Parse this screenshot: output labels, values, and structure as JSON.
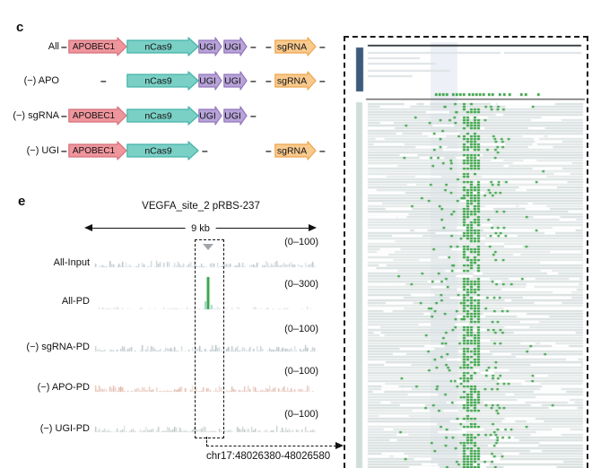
{
  "figure": {
    "panel_c_label": "c",
    "panel_e_label": "e"
  },
  "constructs": {
    "arrow_colors": {
      "apobec": {
        "fill": "#ef959c",
        "stroke": "#d4717c"
      },
      "ncas9": {
        "fill": "#7bd0c6",
        "stroke": "#45b4a9"
      },
      "ugi": {
        "fill": "#b7a3d8",
        "stroke": "#9376bd"
      },
      "sgrna": {
        "fill": "#f9ca8e",
        "stroke": "#eda54a"
      }
    },
    "rows": [
      {
        "label": "All",
        "elements": [
          {
            "t": "dash",
            "slot": "d_label"
          },
          {
            "t": "arrow",
            "slot": "apobec",
            "text": "APOBEC1",
            "color": "apobec"
          },
          {
            "t": "arrow",
            "slot": "ncas9",
            "text": "nCas9",
            "color": "ncas9"
          },
          {
            "t": "arrow",
            "slot": "ugi1",
            "text": "UGI",
            "color": "ugi"
          },
          {
            "t": "arrow",
            "slot": "ugi2",
            "text": "UGI",
            "color": "ugi"
          },
          {
            "t": "dash",
            "slot": "d_after_ugi"
          },
          {
            "t": "dash",
            "slot": "d_pre_sg"
          },
          {
            "t": "arrow",
            "slot": "sgrna",
            "text": "sgRNA",
            "color": "sgrna"
          },
          {
            "t": "dash",
            "slot": "d_end"
          }
        ]
      },
      {
        "label": "(−) APO",
        "elements": [
          {
            "t": "dash",
            "slot": "d_pre_ncas9"
          },
          {
            "t": "arrow",
            "slot": "ncas9",
            "text": "nCas9",
            "color": "ncas9"
          },
          {
            "t": "arrow",
            "slot": "ugi1",
            "text": "UGI",
            "color": "ugi"
          },
          {
            "t": "arrow",
            "slot": "ugi2",
            "text": "UGI",
            "color": "ugi"
          },
          {
            "t": "dash",
            "slot": "d_after_ugi"
          },
          {
            "t": "dash",
            "slot": "d_pre_sg"
          },
          {
            "t": "arrow",
            "slot": "sgrna",
            "text": "sgRNA",
            "color": "sgrna"
          },
          {
            "t": "dash",
            "slot": "d_end"
          }
        ]
      },
      {
        "label": "(−) sgRNA",
        "elements": [
          {
            "t": "dash",
            "slot": "d_label"
          },
          {
            "t": "arrow",
            "slot": "apobec",
            "text": "APOBEC1",
            "color": "apobec"
          },
          {
            "t": "arrow",
            "slot": "ncas9",
            "text": "nCas9",
            "color": "ncas9"
          },
          {
            "t": "arrow",
            "slot": "ugi1",
            "text": "UGI",
            "color": "ugi"
          },
          {
            "t": "arrow",
            "slot": "ugi2",
            "text": "UGI",
            "color": "ugi"
          },
          {
            "t": "dash",
            "slot": "d_after_ugi"
          }
        ]
      },
      {
        "label": "(−) UGI",
        "elements": [
          {
            "t": "dash",
            "slot": "d_label"
          },
          {
            "t": "arrow",
            "slot": "apobec",
            "text": "APOBEC1",
            "color": "apobec"
          },
          {
            "t": "arrow",
            "slot": "ncas9",
            "text": "nCas9",
            "color": "ncas9"
          },
          {
            "t": "dash",
            "slot": "d_after_ncas9"
          },
          {
            "t": "dash",
            "slot": "d_pre_sg"
          },
          {
            "t": "arrow",
            "slot": "sgrna",
            "text": "sgRNA",
            "color": "sgrna"
          },
          {
            "t": "dash",
            "slot": "d_end"
          }
        ]
      }
    ]
  },
  "genome_browser": {
    "title": "VEGFA_site_2 pRBS-237",
    "scale_label": "9 kb",
    "region_label": "chr17:48026380-48026580",
    "tracks": [
      {
        "name": "All-Input",
        "range": "(0–100)",
        "signal": "noise",
        "color": "#9fb0ba"
      },
      {
        "name": "All-PD",
        "range": "(0–300)",
        "signal": "peak",
        "color": "#2f9e3c"
      },
      {
        "name": "(−) sgRNA-PD",
        "range": "(0–100)",
        "signal": "noise",
        "color": "#99a8af"
      },
      {
        "name": "(−) APO-PD",
        "range": "(0–100)",
        "signal": "noise",
        "color": "#d49a87"
      },
      {
        "name": "(−) UGI-PD",
        "range": "(0–100)",
        "signal": "noise",
        "color": "#a7b3ab"
      }
    ],
    "peak_color": "#2f9e3c",
    "peak_secondary_color": "#85cdc4",
    "peak_faint_color": "#c2cecc"
  },
  "alignment_view": {
    "colors": {
      "frame": "#1a1a1a",
      "coverage_bar": "#3d5a7c",
      "coverage_line": "#101418",
      "coverage_read": "#dde2e5",
      "scrollbar": "#cfdeda",
      "read_shades": [
        "#e0e6e6",
        "#dbe2e2",
        "#e5eae9",
        "#d8e0df"
      ],
      "highlight": "#edf1f7",
      "variant": "#2f9e3c",
      "separator": "#4f4f4f"
    },
    "coverage_reads": [
      {
        "y": 18,
        "segs": [
          [
            26,
            148
          ],
          [
            178,
            86
          ]
        ]
      },
      {
        "y": 24,
        "segs": [
          [
            26,
            58
          ]
        ]
      },
      {
        "y": 30,
        "segs": [
          [
            26,
            76
          ]
        ]
      },
      {
        "y": 38,
        "segs": [
          [
            26,
            92
          ]
        ]
      },
      {
        "y": 44,
        "segs": [
          [
            26,
            50
          ]
        ]
      }
    ],
    "variant_ticks_x": [
      101,
      105,
      109,
      113,
      120,
      124,
      128,
      132,
      138,
      142,
      146,
      150,
      154,
      160,
      164,
      172,
      177,
      183,
      196,
      201,
      215
    ],
    "read_rows": 134,
    "cluster_x": [
      132,
      152
    ]
  }
}
